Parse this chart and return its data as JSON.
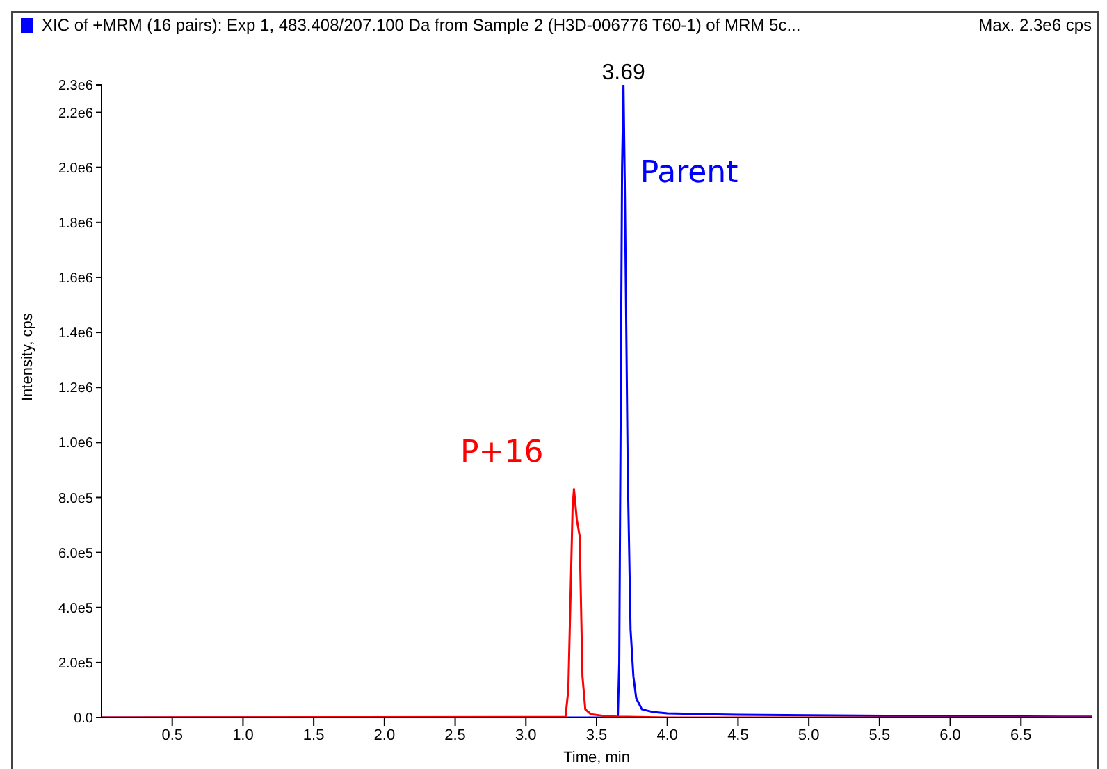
{
  "chart_data": {
    "type": "line",
    "title": "XIC of +MRM (16 pairs): Exp 1, 483.408/207.100 Da  from Sample 2 (H3D-006776 T60-1) of MRM 5c...",
    "xlabel": "Time, min",
    "ylabel": "Intensity, cps",
    "annotations": [
      "Max. 2.3e6 cps",
      {
        "text": "3.69",
        "x": 3.69,
        "y": 2300000
      }
    ],
    "series": [
      {
        "name": "Parent",
        "color": "#0000ff",
        "x": [
          0,
          3.65,
          3.66,
          3.68,
          3.69,
          3.7,
          3.72,
          3.74,
          3.76,
          3.78,
          3.82,
          3.9,
          4.0,
          4.5,
          5.0,
          6.0,
          7.0
        ],
        "values": [
          0,
          0,
          200000,
          2000000,
          2300000,
          1900000,
          900000,
          320000,
          150000,
          70000,
          30000,
          20000,
          15000,
          10000,
          8000,
          5000,
          3000
        ]
      },
      {
        "name": "P+16",
        "color": "#ff0000",
        "x": [
          0,
          3.28,
          3.3,
          3.33,
          3.34,
          3.36,
          3.38,
          3.4,
          3.42,
          3.46,
          3.55,
          3.65,
          4.0,
          5.0,
          6.0,
          7.0
        ],
        "values": [
          0,
          2000,
          100000,
          760000,
          830000,
          720000,
          660000,
          150000,
          30000,
          12000,
          6000,
          3000,
          0,
          0,
          0,
          0
        ]
      }
    ],
    "xlim": [
      0,
      7.0
    ],
    "xticks": [
      0.5,
      {
        "value": 1,
        "label": "1.0"
      },
      1.5,
      {
        "value": 2,
        "label": "2.0"
      },
      2.5,
      {
        "value": 3,
        "label": "3.0"
      },
      3.5,
      {
        "value": 4,
        "label": "4.0"
      },
      4.5,
      {
        "value": 5,
        "label": "5.0"
      },
      5.5,
      {
        "value": 6,
        "label": "6.0"
      },
      6.5
    ],
    "ylim": [
      0,
      2300000
    ],
    "yticks": [
      {
        "value": 0,
        "label": "0.0"
      },
      {
        "value": 200000,
        "label": "2.0e5"
      },
      {
        "value": 400000,
        "label": "4.0e5"
      },
      {
        "value": 600000,
        "label": "6.0e5"
      },
      {
        "value": 800000,
        "label": "8.0e5"
      },
      {
        "value": 1000000,
        "label": "1.0e6"
      },
      {
        "value": 1200000,
        "label": "1.2e6"
      },
      {
        "value": 1400000,
        "label": "1.4e6"
      },
      {
        "value": 1600000,
        "label": "1.6e6"
      },
      {
        "value": 1800000,
        "label": "1.8e6"
      },
      {
        "value": 2000000,
        "label": "2.0e6"
      },
      {
        "value": 2200000,
        "label": "2.2e6"
      },
      {
        "value": 2300000,
        "label": "2.3e6"
      }
    ],
    "grid": false,
    "legend": false,
    "marker": "none",
    "line_style": "solid"
  }
}
